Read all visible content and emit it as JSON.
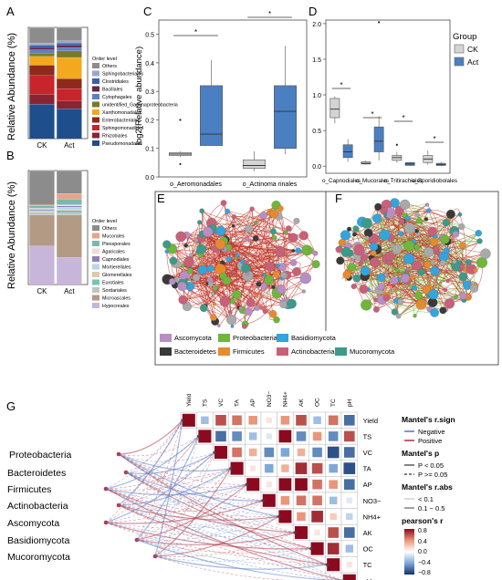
{
  "panel_labels": {
    "A": "A",
    "B": "B",
    "C": "C",
    "D": "D",
    "E": "E",
    "F": "F",
    "G": "G"
  },
  "colors": {
    "ck": "#d4d4d4",
    "act": "#4a7fc1",
    "network_edge": "#c0392b",
    "network_edge_green": "#7bbf4a"
  },
  "chart_data": [
    {
      "id": "A",
      "type": "bar",
      "stacked": true,
      "categories": [
        "CK",
        "Act"
      ],
      "ylabel": "Relative Abundance (%)",
      "legend_title": "Order level",
      "legend_position": "right",
      "series": [
        {
          "name": "Pseudomonadales",
          "color": "#1f4e8c",
          "values": [
            31,
            27
          ]
        },
        {
          "name": "Rhizobiales",
          "color": "#8b2332",
          "values": [
            9,
            7
          ]
        },
        {
          "name": "Sphingomonadales",
          "color": "#c8242c",
          "values": [
            17,
            11
          ]
        },
        {
          "name": "Enterobacteriales",
          "color": "#8c2a1b",
          "values": [
            9,
            9
          ]
        },
        {
          "name": "Xanthomonadales",
          "color": "#f2a91f",
          "values": [
            8,
            19
          ]
        },
        {
          "name": "unidentified_Gammaproteobacteria",
          "color": "#7a7a28",
          "values": [
            3,
            6
          ]
        },
        {
          "name": "Cytophagales",
          "color": "#5c81c2",
          "values": [
            3,
            3
          ]
        },
        {
          "name": "Bacillales",
          "color": "#6b2450",
          "values": [
            2,
            2
          ]
        },
        {
          "name": "Clostridiales",
          "color": "#3a60a8",
          "values": [
            2,
            2
          ]
        },
        {
          "name": "Sphingobacteriales",
          "color": "#9aa8c8",
          "values": [
            2,
            2
          ]
        },
        {
          "name": "Others",
          "color": "#8c8c8c",
          "values": [
            14,
            12
          ]
        }
      ]
    },
    {
      "id": "B",
      "type": "bar",
      "stacked": true,
      "categories": [
        "CK",
        "Act"
      ],
      "ylabel": "Relative Abundance (%)",
      "legend_title": "Order level",
      "legend_position": "right",
      "series": [
        {
          "name": "Hypocreales",
          "color": "#c7b6d9",
          "values": [
            34,
            24
          ]
        },
        {
          "name": "Microascales",
          "color": "#b29a84",
          "values": [
            27,
            37
          ]
        },
        {
          "name": "Sordariales",
          "color": "#c2c2c2",
          "values": [
            1,
            2
          ]
        },
        {
          "name": "Eurotiales",
          "color": "#76c4b3",
          "values": [
            1,
            2
          ]
        },
        {
          "name": "Glomerellales",
          "color": "#e0c8a8",
          "values": [
            1,
            1
          ]
        },
        {
          "name": "Mortierellales",
          "color": "#b8d4ec",
          "values": [
            1,
            2
          ]
        },
        {
          "name": "Capnodiales",
          "color": "#8e7fb8",
          "values": [
            1,
            1
          ]
        },
        {
          "name": "Agaricales",
          "color": "#f0dcd2",
          "values": [
            1,
            1
          ]
        },
        {
          "name": "Pleosporales",
          "color": "#7ab9ae",
          "values": [
            2,
            5
          ]
        },
        {
          "name": "Mucorales",
          "color": "#e8a48a",
          "values": [
            1,
            5
          ]
        },
        {
          "name": "Others",
          "color": "#8c8c8c",
          "values": [
            30,
            20
          ]
        }
      ]
    },
    {
      "id": "C",
      "type": "box",
      "ylabel": "log2(Relative abundance)",
      "ylim": [
        0,
        0.55
      ],
      "yticks": [
        0.0,
        0.1,
        0.2,
        0.3,
        0.4,
        0.5
      ],
      "categories": [
        "o_Aeromonadales",
        "o_Actinoma rinales"
      ],
      "significance": [
        "*",
        "*"
      ],
      "boxes": [
        {
          "category": "o_Aeromonadales",
          "group": "CK",
          "min": 0.07,
          "q1": 0.075,
          "median": 0.08,
          "q3": 0.085,
          "max": 0.09,
          "outliers": [
            0.2,
            0.045
          ]
        },
        {
          "category": "o_Aeromonadales",
          "group": "Act",
          "min": 0.11,
          "q1": 0.11,
          "median": 0.15,
          "q3": 0.32,
          "max": 0.41,
          "outliers": []
        },
        {
          "category": "o_Actinoma rinales",
          "group": "CK",
          "min": 0.02,
          "q1": 0.03,
          "median": 0.04,
          "q3": 0.06,
          "max": 0.09,
          "outliers": []
        },
        {
          "category": "o_Actinoma rinales",
          "group": "Act",
          "min": 0.08,
          "q1": 0.1,
          "median": 0.23,
          "q3": 0.32,
          "max": 0.46,
          "outliers": []
        }
      ]
    },
    {
      "id": "D",
      "type": "box",
      "ylim": [
        -0.1,
        2.05
      ],
      "yticks": [
        0.0,
        0.5,
        1.0,
        1.5,
        2.0
      ],
      "categories": [
        "o_Capnodiales",
        "o_Mucorales",
        "o_Tritirachiales",
        "o_Sporidiobolales"
      ],
      "significance": [
        "*",
        "*",
        "*",
        "*"
      ],
      "legend_title": "Group",
      "legend_position": "right",
      "legend": [
        "CK",
        "Act"
      ],
      "boxes": [
        {
          "category": "o_Capnodiales",
          "group": "CK",
          "min": 0.6,
          "q1": 0.68,
          "median": 0.8,
          "q3": 0.95,
          "max": 0.98,
          "outliers": []
        },
        {
          "category": "o_Capnodiales",
          "group": "Act",
          "min": 0.06,
          "q1": 0.12,
          "median": 0.2,
          "q3": 0.3,
          "max": 0.38,
          "outliers": []
        },
        {
          "category": "o_Mucorales",
          "group": "CK",
          "min": 0.02,
          "q1": 0.03,
          "median": 0.04,
          "q3": 0.06,
          "max": 0.08,
          "outliers": []
        },
        {
          "category": "o_Mucorales",
          "group": "Act",
          "min": 0.08,
          "q1": 0.2,
          "median": 0.35,
          "q3": 0.55,
          "max": 0.7,
          "outliers": [
            2.02
          ]
        },
        {
          "category": "o_Tritirachiales",
          "group": "CK",
          "min": 0.05,
          "q1": 0.08,
          "median": 0.12,
          "q3": 0.15,
          "max": 0.2,
          "outliers": [
            0.3
          ]
        },
        {
          "category": "o_Tritirachiales",
          "group": "Act",
          "min": 0.0,
          "q1": 0.01,
          "median": 0.03,
          "q3": 0.05,
          "max": 0.06,
          "outliers": []
        },
        {
          "category": "o_Sporidiobolales",
          "group": "CK",
          "min": 0.02,
          "q1": 0.05,
          "median": 0.1,
          "q3": 0.15,
          "max": 0.22,
          "outliers": []
        },
        {
          "category": "o_Sporidiobolales",
          "group": "Act",
          "min": 0.0,
          "q1": 0.01,
          "median": 0.02,
          "q3": 0.04,
          "max": 0.06,
          "outliers": []
        }
      ]
    },
    {
      "id": "EF",
      "type": "network",
      "panels": [
        "E",
        "F"
      ],
      "legend": [
        {
          "name": "Ascomycota",
          "color": "#b98ec4"
        },
        {
          "name": "Proteobacteria",
          "color": "#6fb63a"
        },
        {
          "name": "Basidiomycota",
          "color": "#33a4dd"
        },
        {
          "name": "Bacteroidetes",
          "color": "#3a3a3a"
        },
        {
          "name": "Firmicutes",
          "color": "#e68a2e"
        },
        {
          "name": "Actinobacteria",
          "color": "#c9607a"
        },
        {
          "name": "Mucoromycota",
          "color": "#3d9a8a"
        }
      ]
    },
    {
      "id": "G",
      "type": "heatmap",
      "variables": [
        "Yield",
        "TS",
        "VC",
        "TA",
        "AP",
        "NO3−",
        "NH4+",
        "AK",
        "OC",
        "TC",
        "pH"
      ],
      "taxa": [
        "Proteobacteria",
        "Bacteroidetes",
        "Firmicutes",
        "Actinobacteria",
        "Ascomycota",
        "Basidiomycota",
        "Mucoromycota"
      ],
      "matrix": [
        [
          1,
          -0.3,
          0.6,
          0.5,
          0.4,
          0.1,
          0.4,
          0.6,
          -0.3,
          0.5,
          -0.6
        ],
        [
          null,
          1,
          -0.6,
          -0.5,
          -0.3,
          -0.1,
          0.8,
          -0.5,
          0.4,
          -0.5,
          0.6
        ],
        [
          null,
          null,
          1,
          0.5,
          0.3,
          -0.5,
          -0.4,
          0.3,
          -0.5,
          -0.7,
          -0.6
        ],
        [
          null,
          null,
          null,
          1,
          0.1,
          -0.4,
          0.3,
          0.7,
          0.6,
          -0.4,
          -0.7
        ],
        [
          null,
          null,
          null,
          null,
          1,
          0.1,
          0.8,
          0.8,
          0.5,
          0.4,
          -0.6
        ],
        [
          null,
          null,
          null,
          null,
          null,
          1,
          0.4,
          0.5,
          0.5,
          -0.3,
          -0.1
        ],
        [
          null,
          null,
          null,
          null,
          null,
          null,
          1,
          0.4,
          0.7,
          0.2,
          -0.2
        ],
        [
          null,
          null,
          null,
          null,
          null,
          null,
          null,
          1,
          0.1,
          0.6,
          -0.6
        ],
        [
          null,
          null,
          null,
          null,
          null,
          null,
          null,
          null,
          1,
          0.7,
          -0.3
        ],
        [
          null,
          null,
          null,
          null,
          null,
          null,
          null,
          null,
          null,
          1,
          0.1
        ],
        [
          null,
          null,
          null,
          null,
          null,
          null,
          null,
          null,
          null,
          null,
          1
        ]
      ],
      "legend": {
        "sign_title": "Mantel's r.sign",
        "sign": [
          "Negative",
          "Positive"
        ],
        "p_title": "Mantel's p",
        "p": [
          "P < 0.05",
          "P >= 0.05"
        ],
        "r_title": "Mantel's r.abs",
        "r": [
          "< 0.1",
          "0.1 − 0.5"
        ],
        "pearson_title": "pearson's r",
        "pearson_ticks": [
          "0.8",
          "0.4",
          "0.0",
          "−0.4",
          "−0.8"
        ]
      }
    }
  ]
}
